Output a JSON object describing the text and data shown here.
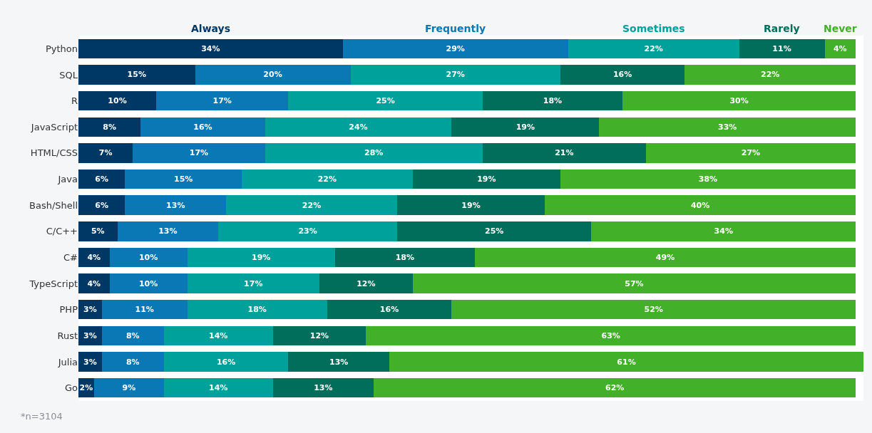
{
  "chart_data": {
    "type": "bar",
    "orientation": "horizontal",
    "stacked": true,
    "legend": false,
    "tick_labels": "y",
    "categories": [
      "Python",
      "SQL",
      "R",
      "JavaScript",
      "HTML/CSS",
      "Java",
      "Bash/Shell",
      "C/C++",
      "C#",
      "TypeScript",
      "PHP",
      "Rust",
      "Julia",
      "Go"
    ],
    "xlim": [
      0,
      101
    ],
    "series": [
      {
        "name": "Always",
        "color": "#003865",
        "values": [
          34,
          15,
          10,
          8,
          7,
          6,
          6,
          5,
          4,
          4,
          3,
          3,
          3,
          2
        ],
        "value_labels": [
          "34%",
          "15%",
          "10%",
          "8%",
          "7%",
          "6%",
          "6%",
          "5%",
          "4%",
          "4%",
          "3%",
          "3%",
          "3%",
          "2%"
        ]
      },
      {
        "name": "Frequently",
        "color": "#0a78b4",
        "values": [
          29,
          20,
          17,
          16,
          17,
          15,
          13,
          13,
          10,
          10,
          11,
          8,
          8,
          9
        ],
        "value_labels": [
          "29%",
          "20%",
          "17%",
          "16%",
          "17%",
          "15%",
          "13%",
          "13%",
          "10%",
          "10%",
          "11%",
          "8%",
          "8%",
          "9%"
        ]
      },
      {
        "name": "Sometimes",
        "color": "#00a19a",
        "values": [
          22,
          27,
          25,
          24,
          28,
          22,
          22,
          23,
          19,
          17,
          18,
          14,
          16,
          14
        ],
        "value_labels": [
          "22%",
          "27%",
          "25%",
          "24%",
          "28%",
          "22%",
          "22%",
          "23%",
          "19%",
          "17%",
          "18%",
          "14%",
          "16%",
          "14%"
        ]
      },
      {
        "name": "Rarely",
        "color": "#006e5a",
        "values": [
          11,
          16,
          18,
          19,
          21,
          19,
          19,
          25,
          18,
          12,
          16,
          12,
          13,
          13
        ],
        "value_labels": [
          "11%",
          "16%",
          "18%",
          "19%",
          "21%",
          "19%",
          "19%",
          "25%",
          "18%",
          "12%",
          "16%",
          "12%",
          "13%",
          "13%"
        ]
      },
      {
        "name": "Never",
        "color": "#43b02a",
        "values": [
          4,
          22,
          30,
          33,
          27,
          38,
          40,
          34,
          49,
          57,
          52,
          63,
          61,
          62
        ],
        "value_labels": [
          "4%",
          "22%",
          "30%",
          "33%",
          "27%",
          "38%",
          "40%",
          "34%",
          "49%",
          "57%",
          "52%",
          "63%",
          "61%",
          "62%"
        ]
      }
    ],
    "annotations": [
      "*n=3104"
    ]
  }
}
